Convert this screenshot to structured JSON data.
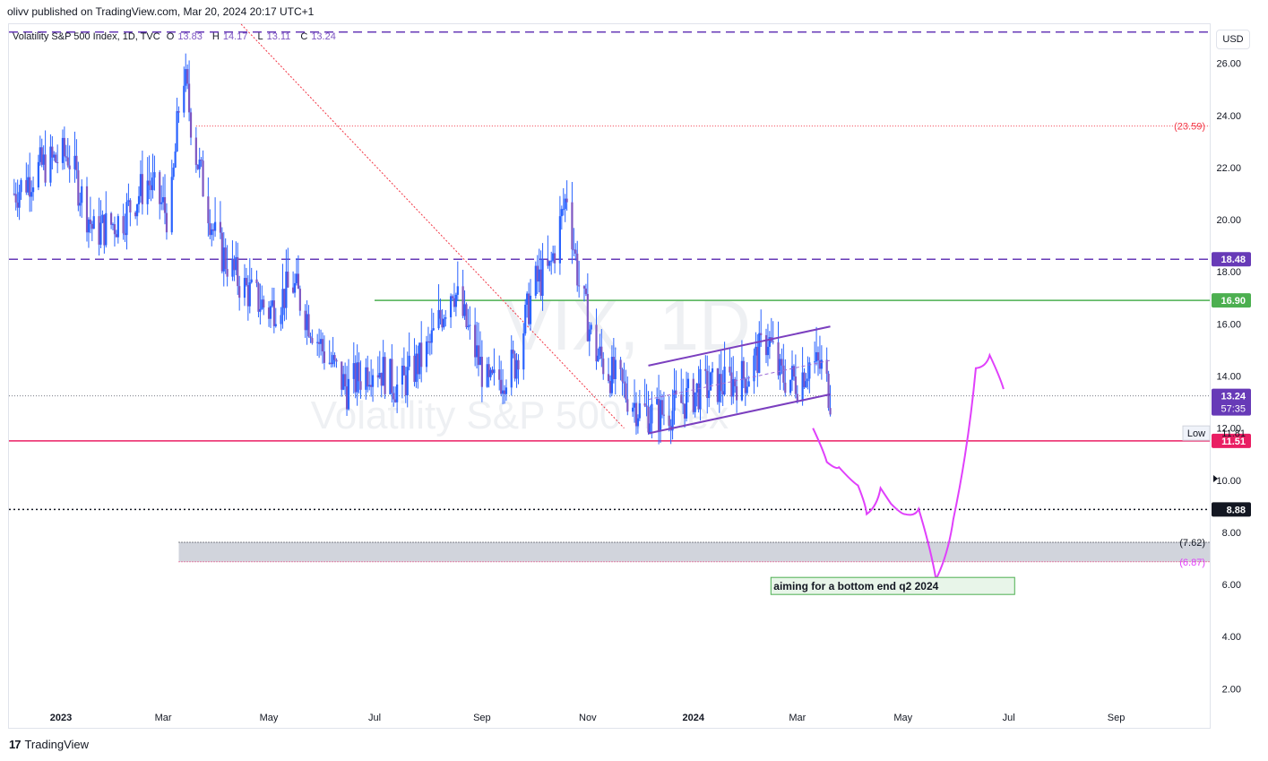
{
  "header": {
    "publisher": "olivv published on TradingView.com, Mar 20, 2024 20:17 UTC+1"
  },
  "legend": {
    "symbol": "Volatility S&P 500 Index, 1D, TVC",
    "open_label": "O",
    "open": "13.83",
    "high_label": "H",
    "high": "14.17",
    "low_label": "L",
    "low": "13.11",
    "close_label": "C",
    "close": "13.24"
  },
  "currency_button": "USD",
  "watermark": {
    "ticker": "VIX, 1D",
    "name": "Volatility S&P 500 Index"
  },
  "footer": {
    "logo_text": "17",
    "brand": "TradingView"
  },
  "colors": {
    "candle": "#7e57c2",
    "candle_wick": "#2962ff",
    "dashed_level": "#673ab7",
    "green_level": "#4caf50",
    "red_level": "#e91e63",
    "magenta_path": "#e040fb",
    "trendline": "#f23645",
    "zone": "#d1d4dc"
  },
  "chart_data": {
    "type": "candlestick",
    "ylim": [
      0.5,
      27.5
    ],
    "y_ticks": [
      "26.00",
      "24.00",
      "22.00",
      "20.00",
      "18.00",
      "16.00",
      "14.00",
      "12.00",
      "10.00",
      "8.00",
      "6.00",
      "4.00",
      "2.00"
    ],
    "x_ticks": [
      "2023",
      "Mar",
      "May",
      "Jul",
      "Sep",
      "Nov",
      "2024",
      "Mar",
      "May",
      "Jul",
      "Sep"
    ],
    "x_tick_dates": [
      "2023-01-01",
      "2023-03-01",
      "2023-05-01",
      "2023-07-01",
      "2023-09-01",
      "2023-11-01",
      "2024-01-01",
      "2024-03-01",
      "2024-05-01",
      "2024-07-01",
      "2024-09-01"
    ],
    "x_range": [
      "2022-12-02",
      "2024-10-25"
    ],
    "close_series": {
      "dates": [
        "2022-12-05",
        "2022-12-20",
        "2023-01-05",
        "2023-01-20",
        "2023-02-05",
        "2023-02-20",
        "2023-03-05",
        "2023-03-12",
        "2023-03-20",
        "2023-04-01",
        "2023-04-15",
        "2023-05-01",
        "2023-05-15",
        "2023-06-01",
        "2023-06-15",
        "2023-07-01",
        "2023-07-15",
        "2023-08-01",
        "2023-08-15",
        "2023-08-25",
        "2023-09-05",
        "2023-09-20",
        "2023-10-01",
        "2023-10-10",
        "2023-10-20",
        "2023-10-27",
        "2023-11-05",
        "2023-11-15",
        "2023-12-01",
        "2023-12-10",
        "2023-12-20",
        "2024-01-05",
        "2024-01-20",
        "2024-02-01",
        "2024-02-13",
        "2024-02-20",
        "2024-03-01",
        "2024-03-08",
        "2024-03-15",
        "2024-03-20"
      ],
      "values": [
        21.0,
        22.0,
        22.5,
        19.5,
        20.0,
        21.5,
        20.0,
        26.0,
        22.5,
        19.0,
        17.5,
        16.5,
        17.5,
        15.0,
        13.5,
        14.5,
        13.5,
        15.0,
        17.5,
        15.5,
        13.5,
        14.5,
        17.5,
        18.0,
        21.0,
        17.5,
        15.0,
        14.0,
        12.7,
        12.5,
        12.7,
        13.5,
        13.7,
        14.0,
        15.5,
        14.0,
        13.8,
        14.5,
        14.3,
        13.24
      ]
    },
    "levels": [
      {
        "label": "18.48",
        "value": 18.48,
        "style": "dashed"
      },
      {
        "label": "16.90",
        "value": 16.9,
        "style": "solid-green"
      },
      {
        "label": "13.24",
        "value": 13.24,
        "style": "last-price",
        "countdown": "57:35"
      },
      {
        "label": "11.81",
        "value": 11.81,
        "style": "low",
        "tag": "Low"
      },
      {
        "label": "11.51",
        "value": 11.51,
        "style": "solid-red"
      },
      {
        "label": "8.88",
        "value": 8.88,
        "style": "dotted-black"
      },
      {
        "label": "(23.59)",
        "value": 23.59,
        "style": "dotted-red"
      },
      {
        "label": "(7.62)",
        "value": 7.62,
        "style": "zone-top"
      },
      {
        "label": "(6.87)",
        "value": 6.87,
        "style": "zone-bottom"
      },
      {
        "label": "",
        "value": 27.2,
        "style": "dashed-top"
      }
    ],
    "channel": {
      "upper": [
        {
          "date": "2023-12-06",
          "y": 14.4
        },
        {
          "date": "2024-03-20",
          "y": 15.9
        }
      ],
      "lower": [
        {
          "date": "2023-12-06",
          "y": 11.8
        },
        {
          "date": "2024-03-20",
          "y": 13.3
        }
      ],
      "mid": [
        {
          "date": "2023-12-06",
          "y": 13.1
        },
        {
          "date": "2024-03-20",
          "y": 14.6
        }
      ]
    },
    "trendline": [
      {
        "date": "2023-04-15",
        "y": 27.5
      },
      {
        "date": "2023-11-22",
        "y": 12.0
      }
    ],
    "projection_path": [
      {
        "date": "2024-03-10",
        "y": 12.0
      },
      {
        "date": "2024-03-18",
        "y": 10.7
      },
      {
        "date": "2024-03-25",
        "y": 10.5
      },
      {
        "date": "2024-04-05",
        "y": 9.8
      },
      {
        "date": "2024-04-10",
        "y": 8.7
      },
      {
        "date": "2024-04-18",
        "y": 9.7
      },
      {
        "date": "2024-04-24",
        "y": 9.1
      },
      {
        "date": "2024-05-02",
        "y": 8.7
      },
      {
        "date": "2024-05-10",
        "y": 8.9
      },
      {
        "date": "2024-05-20",
        "y": 6.2
      },
      {
        "date": "2024-05-30",
        "y": 8.5
      },
      {
        "date": "2024-06-12",
        "y": 14.3
      },
      {
        "date": "2024-06-20",
        "y": 14.8
      },
      {
        "date": "2024-06-28",
        "y": 13.5
      }
    ],
    "annotation": {
      "text": "aiming for a bottom  end q2 2024",
      "date": "2024-05-23",
      "y": 6.1
    }
  }
}
